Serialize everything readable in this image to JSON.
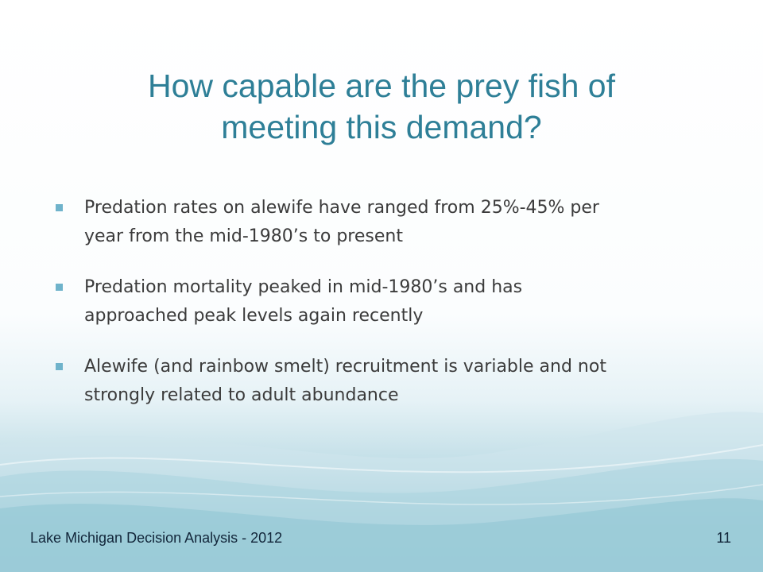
{
  "slide": {
    "title_lines": [
      "How capable are the prey fish of",
      "meeting this demand?"
    ],
    "bullets": [
      {
        "lines": [
          "Predation rates on alewife have ranged from 25%-45% per",
          "year from the mid-1980’s to present"
        ]
      },
      {
        "lines": [
          "Predation mortality peaked in mid-1980’s and has",
          "approached peak levels again recently"
        ]
      },
      {
        "lines": [
          "Alewife (and rainbow smelt) recruitment is variable and not",
          "strongly related to adult abundance"
        ]
      }
    ],
    "footer": "Lake Michigan Decision Analysis - 2012",
    "page_number": "11"
  },
  "colors": {
    "title": "#2e7f97",
    "bullet_marker": "#6fb3cb",
    "body_text": "#3b3b3b",
    "wave_accent": "#7dbacb"
  }
}
